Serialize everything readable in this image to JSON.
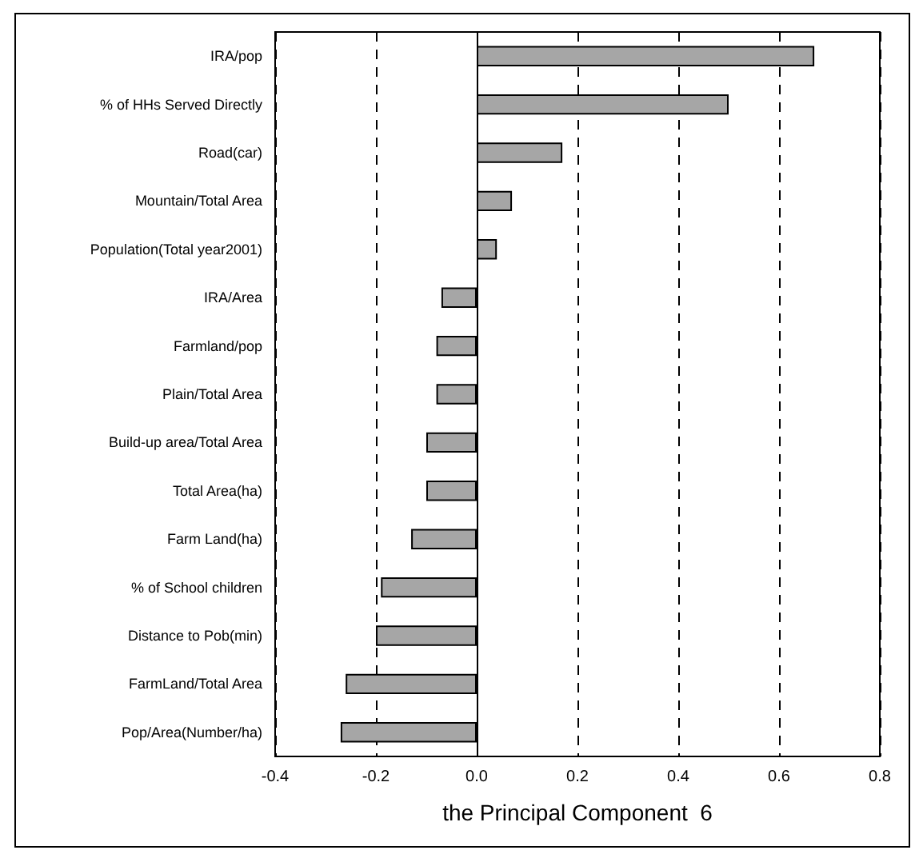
{
  "chart_data": {
    "type": "bar",
    "orientation": "horizontal",
    "xlabel": "the Principal Component  6",
    "categories": [
      "IRA/pop",
      "% of HHs Served Directly",
      "Road(car)",
      "Mountain/Total Area",
      "Population(Total year2001)",
      "IRA/Area",
      "Farmland/pop",
      "Plain/Total Area",
      "Build-up area/Total Area",
      "Total Area(ha)",
      "Farm Land(ha)",
      "% of School children",
      "Distance to Pob(min)",
      "FarmLand/Total Area",
      "Pop/Area(Number/ha)"
    ],
    "values": [
      0.67,
      0.5,
      0.17,
      0.07,
      0.04,
      -0.07,
      -0.08,
      -0.08,
      -0.1,
      -0.1,
      -0.13,
      -0.19,
      -0.2,
      -0.26,
      -0.27
    ],
    "color": "#a6a6a6",
    "xlim": [
      -0.4,
      0.8
    ],
    "xticks": [
      {
        "value": -0.4,
        "label": "-0.4"
      },
      {
        "value": -0.2,
        "label": "-0.2"
      },
      {
        "value": 0,
        "label": "0.0"
      },
      {
        "value": 0.2,
        "label": "0.2"
      },
      {
        "value": 0.4,
        "label": "0.4"
      },
      {
        "value": 0.6,
        "label": "0.6"
      },
      {
        "value": 0.8,
        "label": "0.8"
      }
    ],
    "grid": "x"
  }
}
